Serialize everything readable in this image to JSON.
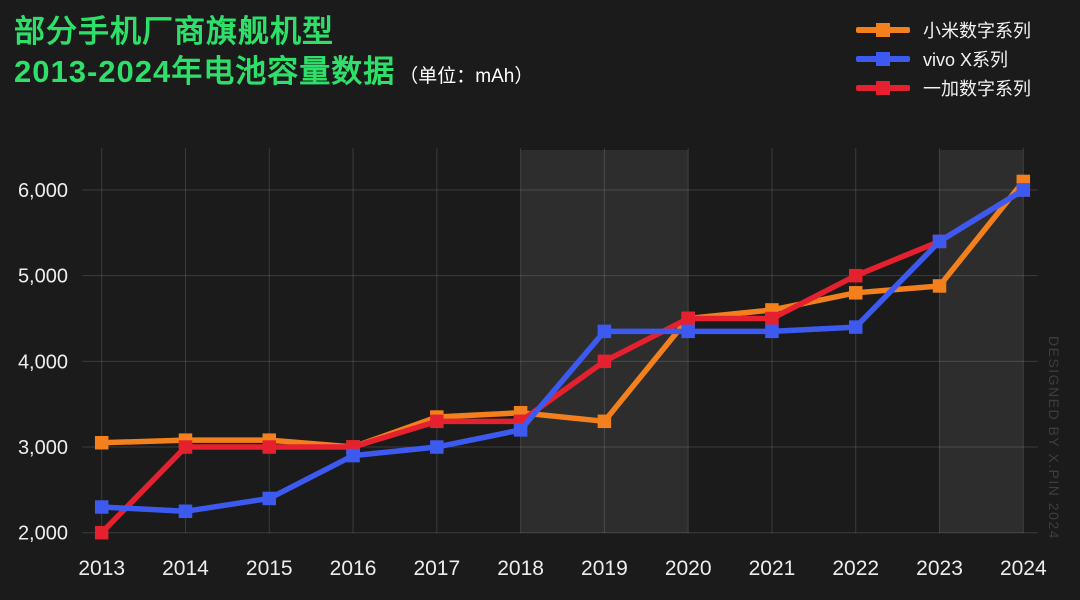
{
  "header": {
    "title_line1": "部分手机厂商旗舰机型",
    "title_line2": "2013-2024年电池容量数据",
    "unit_note": "（单位：mAh）",
    "title_color": "#2EE06A"
  },
  "footer": {
    "designer_credit": "DESIGNED BY X.PIN 2024"
  },
  "colors": {
    "background": "#1b1b1b",
    "highlight_band": "#2d2d2d",
    "gridline": "rgba(255,255,255,0.14)",
    "axis_text": "#ededed"
  },
  "chart_data": {
    "type": "line",
    "title": "部分手机厂商旗舰机型 2013-2024年电池容量数据",
    "unit": "mAh",
    "xlabel": "",
    "ylabel": "",
    "grid": true,
    "legend_position": "top-right",
    "categories": [
      "2013",
      "2014",
      "2015",
      "2016",
      "2017",
      "2018",
      "2019",
      "2020",
      "2021",
      "2022",
      "2023",
      "2024"
    ],
    "series": [
      {
        "name": "小米数字系列",
        "color": "#F3801D",
        "values": [
          3050,
          3080,
          3080,
          3000,
          3350,
          3400,
          3300,
          4500,
          4600,
          4800,
          4880,
          6100
        ]
      },
      {
        "name": "vivo X系列",
        "color": "#3D5AF0",
        "values": [
          2300,
          2250,
          2400,
          2900,
          3000,
          3200,
          4350,
          4350,
          4350,
          4400,
          5400,
          6000
        ]
      },
      {
        "name": "一加数字系列",
        "color": "#E6212F",
        "values": [
          2000,
          3000,
          3000,
          3000,
          3300,
          3300,
          4000,
          4500,
          4500,
          5000,
          5400,
          6000
        ]
      }
    ],
    "draw_order": [
      0,
      2,
      1
    ],
    "y_axis": {
      "min": 2000,
      "max": 6000,
      "step": 1000,
      "tick_labels": [
        "2,000",
        "3,000",
        "4,000",
        "5,000",
        "6,000"
      ]
    },
    "highlight_bands": [
      {
        "from": "2018",
        "to": "2020"
      },
      {
        "from": "2023",
        "to": "2024"
      }
    ]
  }
}
